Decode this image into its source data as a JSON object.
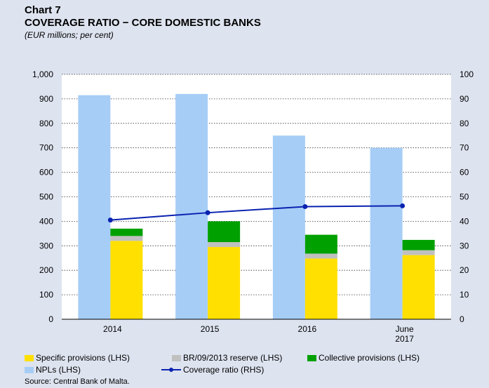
{
  "chart_data": {
    "type": "bar",
    "chart_label": "Chart 7",
    "title": "COVERAGE RATIO − CORE DOMESTIC BANKS",
    "subtitle": "(EUR millions; per cent)",
    "categories": [
      [
        "2014"
      ],
      [
        "2015"
      ],
      [
        "2016"
      ],
      [
        "June",
        "2017"
      ]
    ],
    "y_left": {
      "ylim": [
        0,
        1000
      ],
      "ticks": [
        "0",
        "100",
        "200",
        "300",
        "400",
        "500",
        "600",
        "700",
        "800",
        "900",
        "1,000"
      ]
    },
    "y_right": {
      "ylim": [
        0,
        100
      ],
      "ticks": [
        "0",
        "10",
        "20",
        "30",
        "40",
        "50",
        "60",
        "70",
        "80",
        "90",
        "100"
      ]
    },
    "series": [
      {
        "name": "Specific provisions (LHS)",
        "kind": "stacked_bar",
        "axis": "left",
        "color": "#ffe000",
        "values": [
          320,
          295,
          248,
          262
        ]
      },
      {
        "name": "BR/09/2013 reserve (LHS)",
        "kind": "stacked_bar",
        "axis": "left",
        "color": "#c0c0c0",
        "values": [
          20,
          20,
          20,
          20
        ]
      },
      {
        "name": "Collective provisions (LHS)",
        "kind": "stacked_bar",
        "axis": "left",
        "color": "#00a000",
        "values": [
          30,
          85,
          77,
          42
        ]
      },
      {
        "name": "NPLs (LHS)",
        "kind": "bar",
        "axis": "left",
        "color": "#a6cdf6",
        "values": [
          915,
          920,
          750,
          700
        ]
      },
      {
        "name": "Coverage ratio (RHS)",
        "kind": "line",
        "axis": "right",
        "color": "#0a22b0",
        "values": [
          40.5,
          43.5,
          46,
          46.3
        ]
      }
    ],
    "grid": "dotted horizontal",
    "legend_position": "bottom"
  },
  "source": "Source: Central Bank of Malta."
}
